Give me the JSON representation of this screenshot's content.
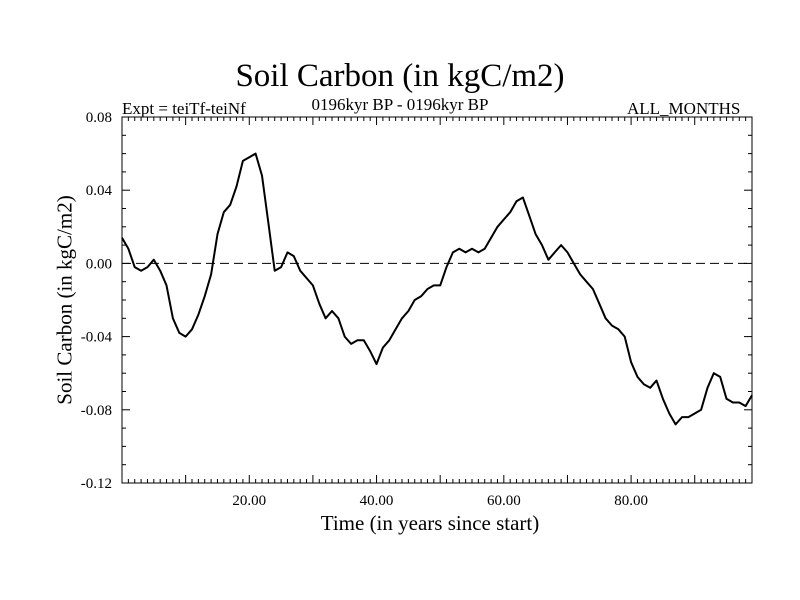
{
  "header": {
    "title": "Soil Carbon (in kgC/m2)",
    "experiment": "Expt = teiTf-teiNf",
    "period": "0196kyr BP - 0196kyr BP",
    "months": "ALL_MONTHS"
  },
  "chart_data": {
    "type": "line",
    "xlabel": "Time (in years since start)",
    "ylabel": "Soil Carbon (in kgC/m2)",
    "xlim": [
      0,
      99
    ],
    "ylim": [
      -0.12,
      0.08
    ],
    "xticks": [
      20,
      40,
      60,
      80
    ],
    "xtick_labels": [
      "20.00",
      "40.00",
      "60.00",
      "80.00"
    ],
    "yticks": [
      0.08,
      0.04,
      0.0,
      -0.04,
      -0.08,
      -0.12
    ],
    "ytick_labels": [
      "0.08",
      "0.04",
      "0.00",
      "-0.04",
      "-0.08",
      "-0.12"
    ],
    "reference_line": 0.0,
    "grid": false,
    "series": [
      {
        "x": [
          0,
          1,
          2,
          3,
          4,
          5,
          6,
          7,
          8,
          9,
          10,
          11,
          12,
          13,
          14,
          15,
          16,
          17,
          18,
          19,
          20,
          21,
          22,
          23,
          24,
          25,
          26,
          27,
          28,
          29,
          30,
          31,
          32,
          33,
          34,
          35,
          36,
          37,
          38,
          39,
          40,
          41,
          42,
          43,
          44,
          45,
          46,
          47,
          48,
          49,
          50,
          51,
          52,
          53,
          54,
          55,
          56,
          57,
          58,
          59,
          60,
          61,
          62,
          63,
          64,
          65,
          66,
          67,
          68,
          69,
          70,
          71,
          72,
          73,
          74,
          75,
          76,
          77,
          78,
          79,
          80,
          81,
          82,
          83,
          84,
          85,
          86,
          87,
          88,
          89,
          90,
          91,
          92,
          93,
          94,
          95,
          96,
          97,
          98,
          99
        ],
        "y": [
          0.014,
          0.008,
          -0.002,
          -0.004,
          -0.002,
          0.002,
          -0.004,
          -0.012,
          -0.03,
          -0.038,
          -0.04,
          -0.036,
          -0.028,
          -0.018,
          -0.006,
          0.016,
          0.028,
          0.032,
          0.042,
          0.056,
          0.058,
          0.06,
          0.048,
          0.022,
          -0.004,
          -0.002,
          0.006,
          0.004,
          -0.004,
          -0.008,
          -0.012,
          -0.022,
          -0.03,
          -0.026,
          -0.03,
          -0.04,
          -0.044,
          -0.042,
          -0.042,
          -0.048,
          -0.055,
          -0.046,
          -0.042,
          -0.036,
          -0.03,
          -0.026,
          -0.02,
          -0.018,
          -0.014,
          -0.012,
          -0.012,
          -0.002,
          0.006,
          0.008,
          0.006,
          0.008,
          0.006,
          0.008,
          0.014,
          0.02,
          0.024,
          0.028,
          0.034,
          0.036,
          0.026,
          0.016,
          0.01,
          0.002,
          0.006,
          0.01,
          0.006,
          0.0,
          -0.006,
          -0.01,
          -0.014,
          -0.022,
          -0.03,
          -0.034,
          -0.036,
          -0.04,
          -0.054,
          -0.062,
          -0.066,
          -0.068,
          -0.064,
          -0.074,
          -0.082,
          -0.088,
          -0.084,
          -0.084,
          -0.082,
          -0.08,
          -0.068,
          -0.06,
          -0.062,
          -0.074,
          -0.076,
          -0.076,
          -0.078,
          -0.072
        ]
      }
    ]
  }
}
